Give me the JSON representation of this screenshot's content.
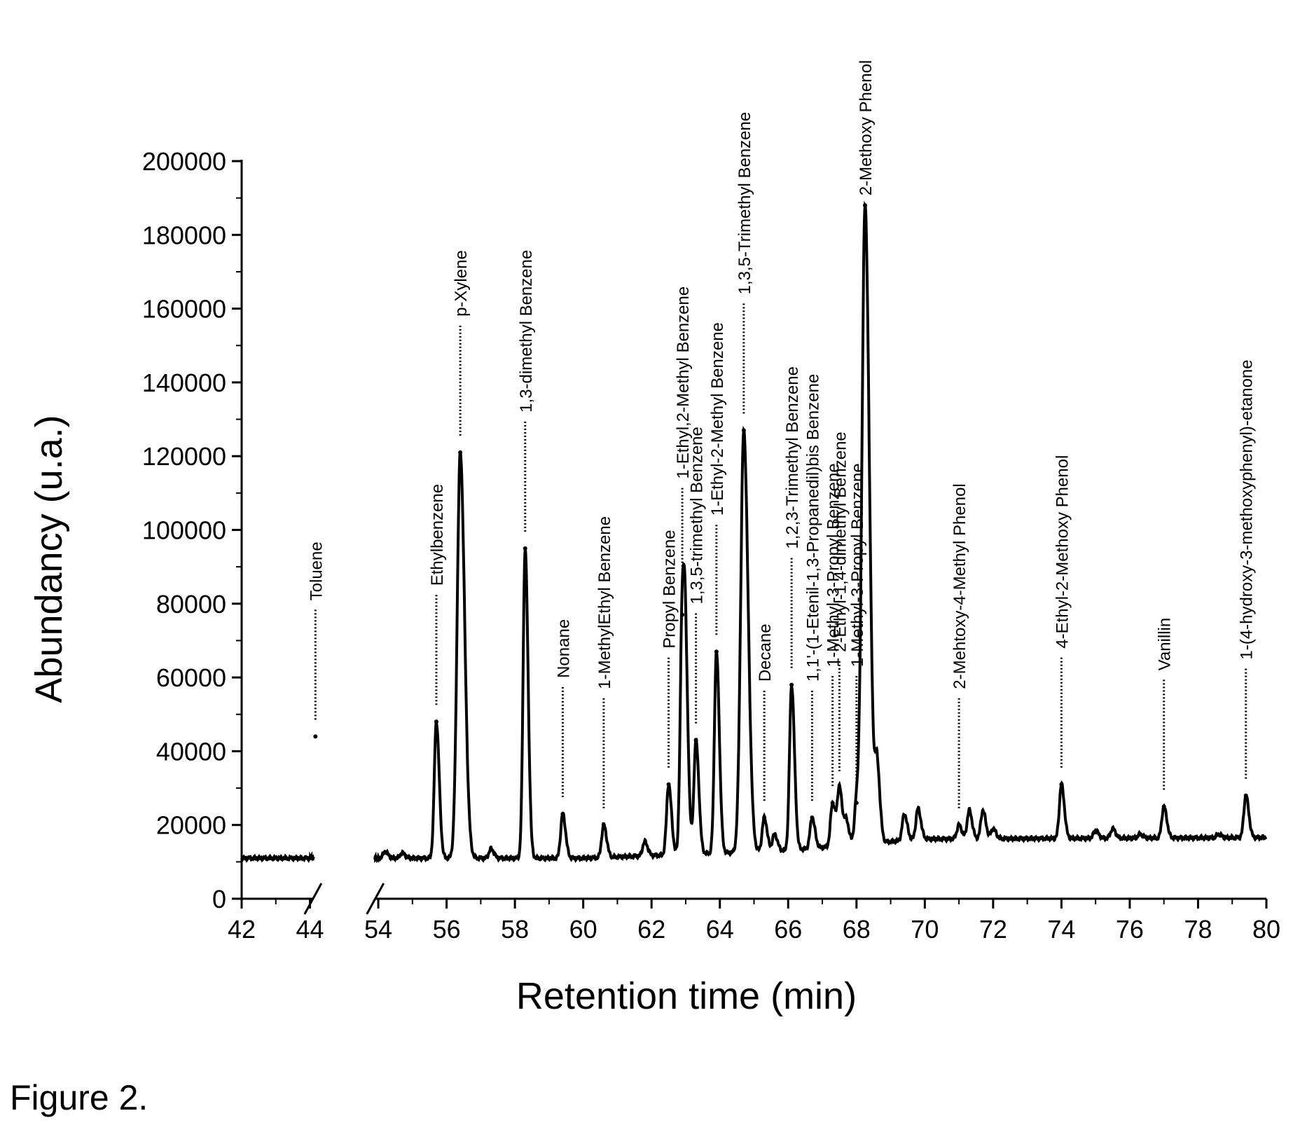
{
  "caption": "Figure 2.",
  "chart_data": {
    "type": "line",
    "title": "",
    "xlabel": "Retention time (min)",
    "ylabel": "Abundancy  (u.a.)",
    "xlim": [
      42,
      80
    ],
    "ylim": [
      0,
      200000
    ],
    "axis_break": {
      "from": 44.5,
      "to": 53.5
    },
    "x_ticks": [
      42,
      44,
      54,
      56,
      58,
      60,
      62,
      64,
      66,
      68,
      70,
      72,
      74,
      76,
      78,
      80
    ],
    "y_ticks": [
      0,
      20000,
      40000,
      60000,
      80000,
      100000,
      120000,
      140000,
      160000,
      180000,
      200000
    ],
    "baseline": 11000,
    "peaks": [
      {
        "label": "Toluene",
        "x": 44.8,
        "y": 44000
      },
      {
        "label": "Ethylbenzene",
        "x": 55.7,
        "y": 48000
      },
      {
        "label": "p-Xylene",
        "x": 56.4,
        "y": 121000
      },
      {
        "label": "1,3-dimethyl Benzene",
        "x": 58.3,
        "y": 95000
      },
      {
        "label": "Nonane",
        "x": 59.4,
        "y": 23000
      },
      {
        "label": "1-MethylEthyl Benzene",
        "x": 60.6,
        "y": 20000
      },
      {
        "label": "Propyl Benzene",
        "x": 62.5,
        "y": 31000
      },
      {
        "label": "1-Ethyl,2-Methyl Benzene",
        "x": 62.9,
        "y": 77000
      },
      {
        "label": "1,3,5-trimethyl Benzene",
        "x": 63.3,
        "y": 43000
      },
      {
        "label": "1-Ethyl-2-Methyl Benzene",
        "x": 63.9,
        "y": 67000
      },
      {
        "label": "1,3,5-Trimethyl Benzene",
        "x": 64.7,
        "y": 127000
      },
      {
        "label": "Decane",
        "x": 65.3,
        "y": 22000
      },
      {
        "label": "1,2,3-Trimethyl Benzene",
        "x": 66.1,
        "y": 58000
      },
      {
        "label": "1,1'-(1-Etenil-1,3-Propanedil)bis Benzene",
        "x": 66.7,
        "y": 22000
      },
      {
        "label": "1-Methyl-3-Propyl Benzene",
        "x": 67.3,
        "y": 26000
      },
      {
        "label": "2-Ethyl-1,4-dimethyl Benzene",
        "x": 67.5,
        "y": 30000
      },
      {
        "label": "1-Methyl-3-Propyl Benzene",
        "x": 68.0,
        "y": 26000
      },
      {
        "label": "2-Methoxy Phenol",
        "x": 68.25,
        "y": 188000
      },
      {
        "label": "2-Mehtoxy-4-Methyl Phenol",
        "x": 71.0,
        "y": 20000
      },
      {
        "label": "4-Ethyl-2-Methoxy Phenol",
        "x": 74.0,
        "y": 31000
      },
      {
        "label": "Vanillin",
        "x": 77.0,
        "y": 25000
      },
      {
        "label": "1-(4-hydroxy-3-methoxyphenyl)-etanone",
        "x": 79.4,
        "y": 28000
      }
    ],
    "minor_peaks": [
      {
        "x": 54.2,
        "y": 12800
      },
      {
        "x": 54.7,
        "y": 12400
      },
      {
        "x": 57.3,
        "y": 13500
      },
      {
        "x": 61.8,
        "y": 15500
      },
      {
        "x": 63.0,
        "y": 47000
      },
      {
        "x": 65.6,
        "y": 17500
      },
      {
        "x": 67.7,
        "y": 21000
      },
      {
        "x": 68.6,
        "y": 36000
      },
      {
        "x": 69.4,
        "y": 23000
      },
      {
        "x": 69.8,
        "y": 24500
      },
      {
        "x": 71.3,
        "y": 24000
      },
      {
        "x": 71.7,
        "y": 24000
      },
      {
        "x": 72.0,
        "y": 19000
      },
      {
        "x": 75.0,
        "y": 18500
      },
      {
        "x": 75.5,
        "y": 19000
      },
      {
        "x": 76.3,
        "y": 17500
      },
      {
        "x": 78.6,
        "y": 17500
      }
    ]
  }
}
